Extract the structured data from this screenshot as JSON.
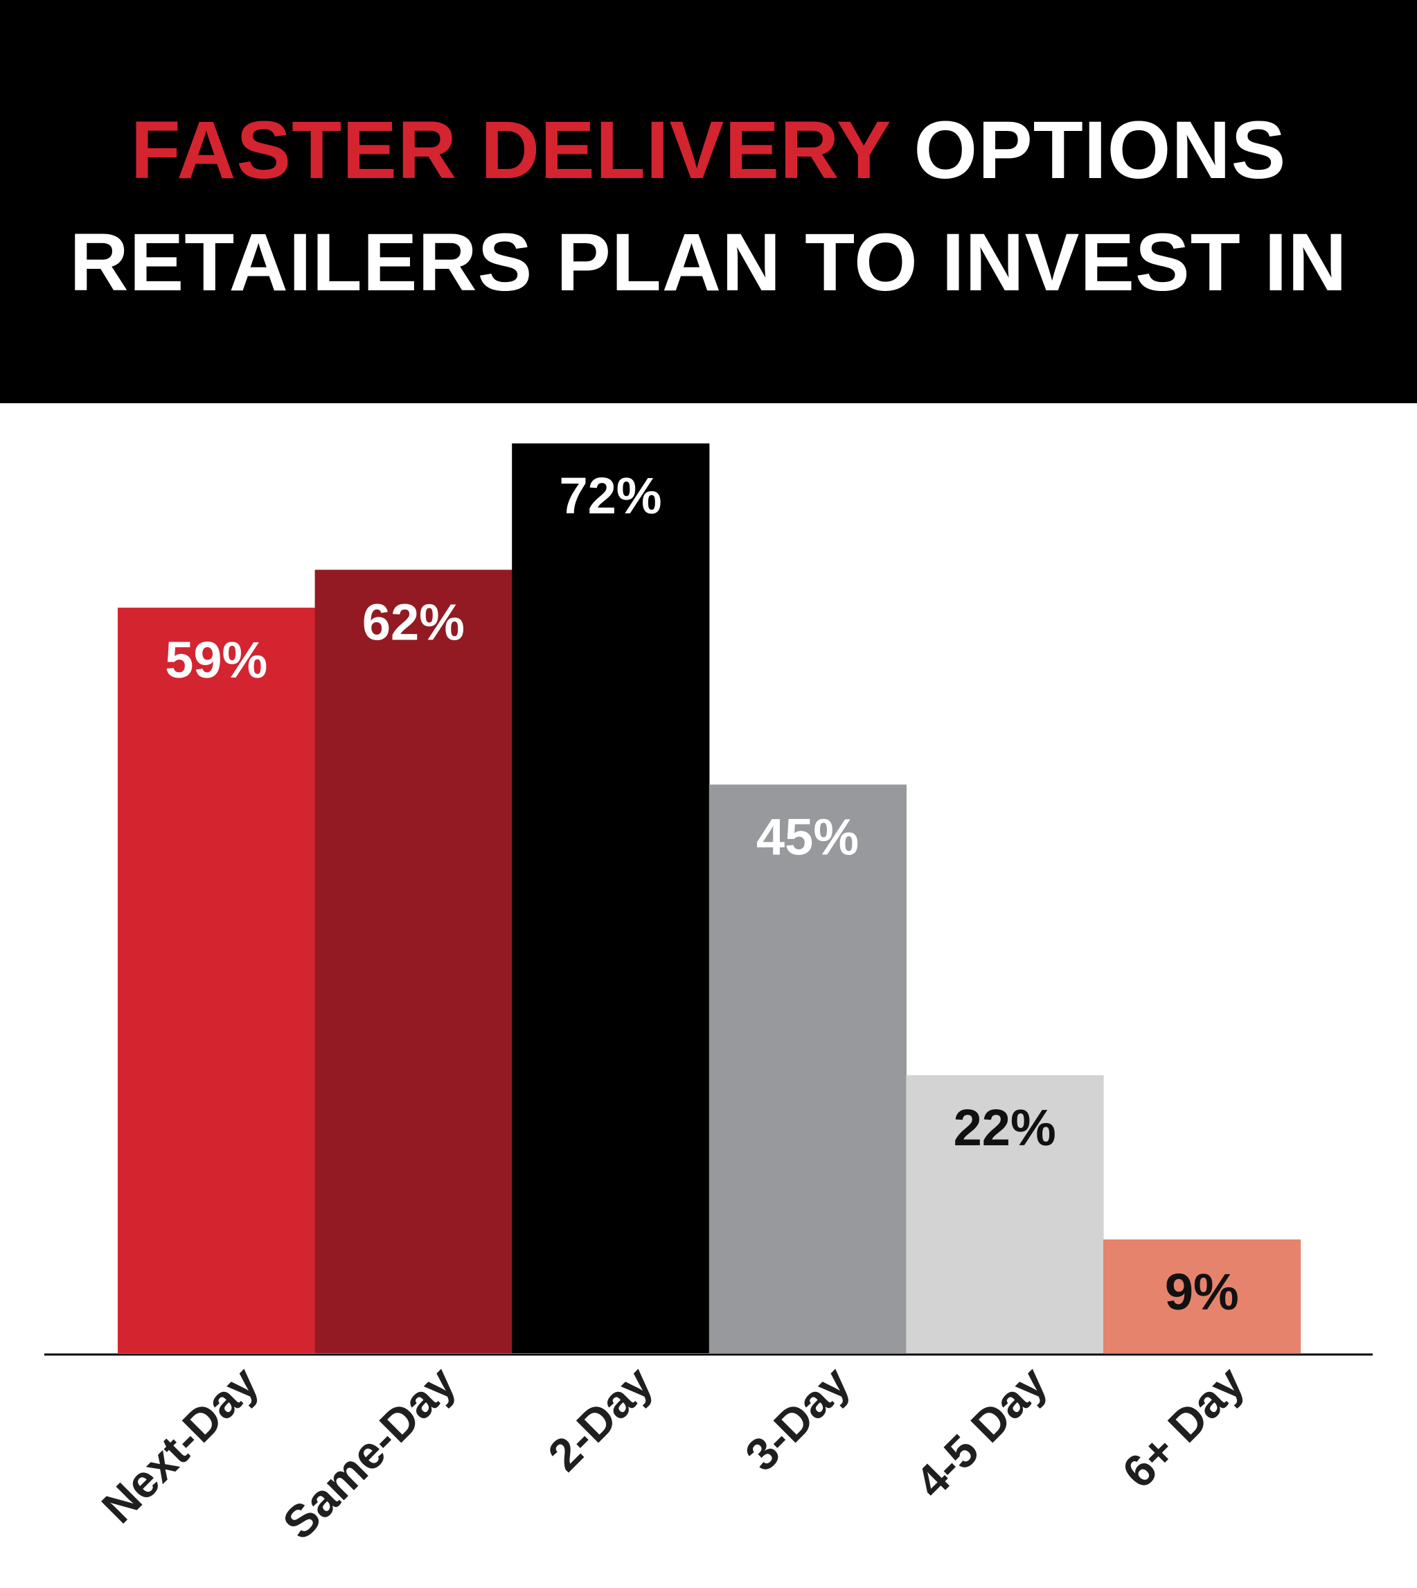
{
  "header": {
    "title_accent": "FASTER DELIVERY",
    "title_rest": "OPTIONS",
    "title_line2": "RETAILERS PLAN TO INVEST IN",
    "background": "#000000",
    "accent_color": "#d42430",
    "text_color": "#ffffff"
  },
  "chart_data": {
    "type": "bar",
    "title": "FASTER DELIVERY OPTIONS RETAILERS PLAN TO INVEST IN",
    "xlabel": "",
    "ylabel": "",
    "categories": [
      "Next-Day",
      "Same-Day",
      "2-Day",
      "3-Day",
      "4-5 Day",
      "6+ Day"
    ],
    "values": [
      59,
      62,
      72,
      45,
      22,
      9
    ],
    "value_labels": [
      "59%",
      "62%",
      "72%",
      "45%",
      "22%",
      "9%"
    ],
    "unit": "%",
    "colors": [
      "#d42430",
      "#931a22",
      "#000000",
      "#98999d",
      "#d3d3d3",
      "#e6836c"
    ],
    "label_colors": [
      "#ffffff",
      "#ffffff",
      "#ffffff",
      "#ffffff",
      "#111111",
      "#111111"
    ],
    "ylim": [
      0,
      72
    ],
    "grid": false,
    "legend": "none"
  }
}
